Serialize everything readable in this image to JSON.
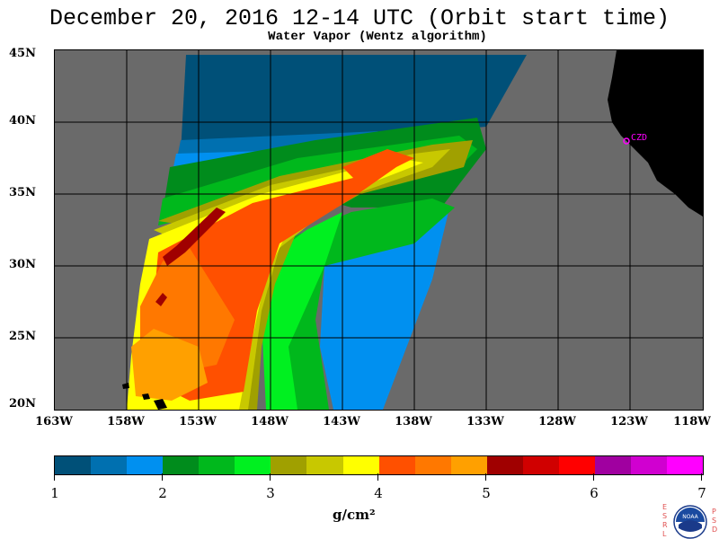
{
  "title": "December 20, 2016  12-14 UTC  (Orbit start time)",
  "subtitle": "Water Vapor (Wentz algorithm)",
  "lat_labels": [
    "45N",
    "40N",
    "35N",
    "30N",
    "25N",
    "20N"
  ],
  "lon_labels": [
    "163W",
    "158W",
    "153W",
    "148W",
    "143W",
    "138W",
    "133W",
    "128W",
    "123W",
    "118W"
  ],
  "city_label": "CZD",
  "colorbar": {
    "colors": [
      "#005078",
      "#0070b0",
      "#0090f0",
      "#008c1c",
      "#00b81c",
      "#00f020",
      "#a0a000",
      "#c8c800",
      "#ffff00",
      "#ff5000",
      "#ff7800",
      "#ffa000",
      "#a00000",
      "#d00000",
      "#ff0000",
      "#a000a0",
      "#d000d0",
      "#ff00ff"
    ],
    "tick_labels": [
      "1",
      "2",
      "3",
      "4",
      "5",
      "6",
      "7"
    ],
    "unit": "g/cm²"
  },
  "logo": {
    "left_letters": [
      "E",
      "S",
      "R",
      "L"
    ],
    "center": "NOAA",
    "right_letters": [
      "P",
      "S",
      "D"
    ]
  },
  "map_colors": {
    "background": "#6a6a6a",
    "land": "#000000",
    "grid": "#000000",
    "city": "#ff00ff"
  }
}
